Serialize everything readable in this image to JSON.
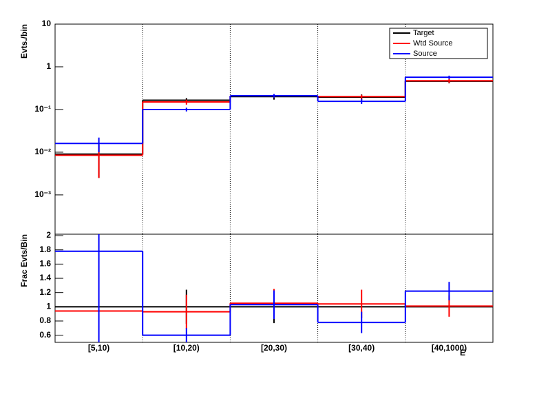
{
  "chart_data": [
    {
      "type": "step",
      "y_label": "Evts./bin",
      "log_y": true,
      "grid_x": true,
      "legend": "top-right",
      "ylim": [
        0.00012,
        10
      ],
      "yticks": [
        {
          "value": 0.001,
          "label": "10⁻³"
        },
        {
          "value": 0.01,
          "label": "10⁻²"
        },
        {
          "value": 0.1,
          "label": "10⁻¹"
        },
        1,
        10
      ],
      "series": [
        {
          "name": "Target",
          "color": "#000000",
          "values": [
            0.009,
            0.165,
            0.2,
            0.195,
            0.46
          ],
          "errors": [
            0.0065,
            0.02,
            0.03,
            0.03,
            0.05
          ]
        },
        {
          "name": "Wtd Source",
          "color": "#ff0000",
          "values": [
            0.0085,
            0.15,
            0.21,
            0.2,
            0.47
          ],
          "errors": [
            0.006,
            0.02,
            0.02,
            0.02,
            0.05
          ]
        },
        {
          "name": "Source",
          "color": "#0000ff",
          "values": [
            0.016,
            0.1,
            0.21,
            0.155,
            0.57
          ],
          "errors": [
            0.006,
            0.01,
            0.02,
            0.02,
            0.05
          ]
        }
      ]
    },
    {
      "type": "step",
      "y_label": "Frac Evts/Bin",
      "x_label": "E",
      "grid_x": true,
      "categories": [
        "[5,10)",
        "[10,20)",
        "[20,30)",
        "[30,40)",
        "[40,1000)"
      ],
      "ylim": [
        0.5,
        2.02
      ],
      "yticks": [
        0.6,
        0.8,
        1,
        1.2,
        1.4,
        1.6,
        1.8,
        2
      ],
      "series": [
        {
          "color": "#000000",
          "values": [
            1,
            1,
            1,
            1,
            1
          ],
          "errors": [
            0,
            0.24,
            0.23,
            0,
            0
          ]
        },
        {
          "color": "#ff0000",
          "values": [
            0.94,
            0.93,
            1.05,
            1.04,
            1.01
          ],
          "errors": [
            0,
            0.24,
            0.2,
            0.2,
            0.15
          ]
        },
        {
          "color": "#0000ff",
          "values": [
            1.78,
            0.6,
            1.03,
            0.78,
            1.22
          ],
          "errors": [
            1.3,
            0.1,
            0.2,
            0.15,
            0.13
          ]
        }
      ]
    }
  ]
}
